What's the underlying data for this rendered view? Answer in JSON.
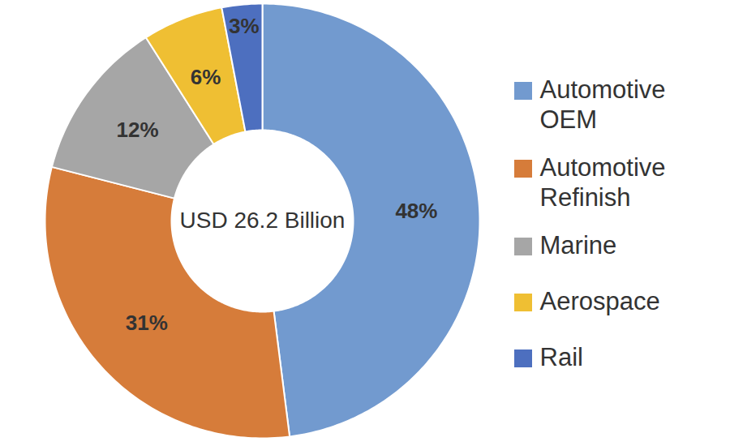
{
  "chart_data": {
    "type": "pie",
    "annotations": [
      "USD 26.2 Billion"
    ],
    "categories": [
      "Automotive OEM",
      "Automotive Refinish",
      "Marine",
      "Aerospace",
      "Rail"
    ],
    "values": [
      48,
      31,
      12,
      6,
      3
    ],
    "value_labels": [
      "48%",
      "31%",
      "12%",
      "6%",
      "3%"
    ],
    "colors": [
      "#729acf",
      "#d67c3a",
      "#a6a6a6",
      "#efbf33",
      "#4d6fbf"
    ],
    "data_labels": true,
    "legend": "right"
  }
}
